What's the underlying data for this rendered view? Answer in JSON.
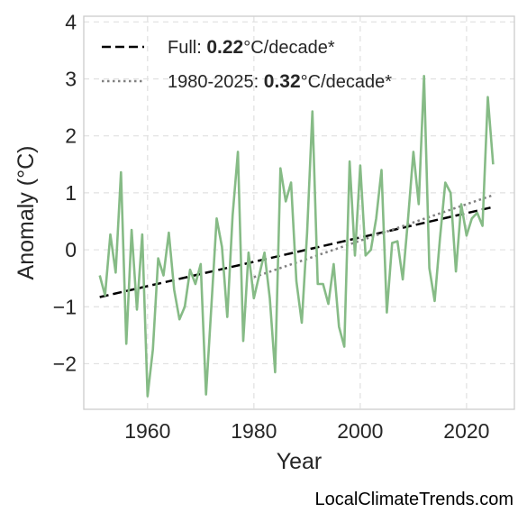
{
  "chart_data": {
    "type": "line",
    "xlabel": "Year",
    "ylabel": "Anomaly (°C)",
    "xlim": [
      1948,
      2029
    ],
    "ylim": [
      -2.8,
      4.1
    ],
    "x_ticks": [
      1960,
      1980,
      2000,
      2020
    ],
    "x_tick_labels": [
      "1960",
      "1980",
      "2000",
      "2020"
    ],
    "y_ticks": [
      -2,
      -1,
      0,
      1,
      2,
      3,
      4
    ],
    "y_tick_labels": [
      "−2",
      "−1",
      "0",
      "1",
      "2",
      "3",
      "4"
    ],
    "grid": true,
    "legend_placement": "top-left",
    "legend": [
      {
        "prefix": "Full: ",
        "value": "0.22",
        "suffix": "°C/decade*",
        "style": "dashed",
        "color": "#000000"
      },
      {
        "prefix": "1980-2025: ",
        "value": "0.32",
        "suffix": "°C/decade*",
        "style": "dotted",
        "color": "#808080"
      }
    ],
    "series": [
      {
        "color": "#86bb86",
        "x": [
          1951,
          1952,
          1953,
          1954,
          1955,
          1956,
          1957,
          1958,
          1959,
          1960,
          1961,
          1962,
          1963,
          1964,
          1965,
          1966,
          1967,
          1968,
          1969,
          1970,
          1971,
          1972,
          1973,
          1974,
          1975,
          1976,
          1977,
          1978,
          1979,
          1980,
          1981,
          1982,
          1983,
          1984,
          1985,
          1986,
          1987,
          1988,
          1989,
          1990,
          1991,
          1992,
          1993,
          1994,
          1995,
          1996,
          1997,
          1998,
          1999,
          2000,
          2001,
          2002,
          2003,
          2004,
          2005,
          2006,
          2007,
          2008,
          2009,
          2010,
          2011,
          2012,
          2013,
          2014,
          2015,
          2016,
          2017,
          2018,
          2019,
          2020,
          2021,
          2022,
          2023,
          2024,
          2025
        ],
        "y": [
          -0.45,
          -0.8,
          0.27,
          -0.4,
          1.36,
          -1.65,
          0.35,
          -1.05,
          0.27,
          -2.57,
          -1.75,
          -0.15,
          -0.45,
          0.3,
          -0.7,
          -1.22,
          -1.0,
          -0.35,
          -0.6,
          -0.25,
          -2.54,
          -1.0,
          0.55,
          0.05,
          -1.18,
          0.6,
          1.72,
          -1.6,
          -0.05,
          -0.85,
          -0.45,
          -0.05,
          -0.85,
          -2.15,
          1.43,
          0.85,
          1.18,
          -0.55,
          -1.28,
          0.3,
          2.43,
          -0.6,
          -0.6,
          -0.95,
          -0.25,
          -1.35,
          -1.7,
          1.55,
          -0.1,
          1.48,
          -0.1,
          0.0,
          0.55,
          1.4,
          -1.1,
          0.12,
          0.15,
          -0.52,
          0.55,
          1.72,
          0.8,
          3.05,
          -0.32,
          -0.9,
          0.2,
          1.18,
          1.0,
          -0.38,
          0.8,
          0.25,
          0.55,
          0.65,
          0.42,
          2.68,
          1.5
        ]
      }
    ],
    "trend_lines": [
      {
        "name": "full",
        "style": "dashed",
        "color": "#000000",
        "x": [
          1951,
          2025
        ],
        "y": [
          -0.83,
          0.75
        ]
      },
      {
        "name": "recent",
        "style": "dotted",
        "color": "#808080",
        "x": [
          1980,
          2025
        ],
        "y": [
          -0.48,
          0.96
        ]
      }
    ]
  },
  "watermark": "LocalClimateTrends.com"
}
